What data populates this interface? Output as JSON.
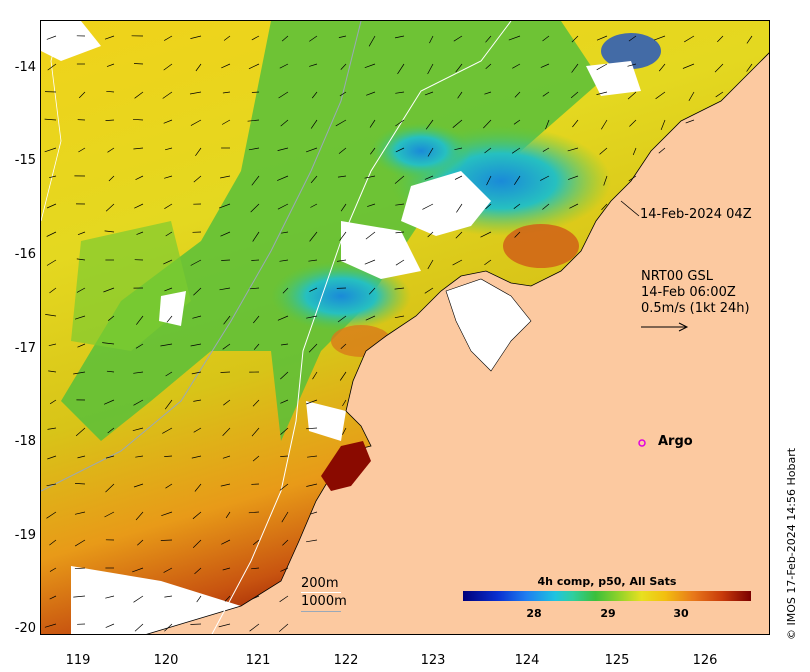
{
  "map": {
    "y_axis_labels": [
      "-14",
      "-15",
      "-16",
      "-17",
      "-18",
      "-19",
      "-20"
    ],
    "x_axis_labels": [
      "119",
      "120",
      "121",
      "122",
      "123",
      "124",
      "125",
      "126"
    ],
    "lat_range": [
      -20.05,
      -13.5
    ],
    "lon_range": [
      118.6,
      126.55
    ],
    "land_color": "#fcc9a0",
    "cloud_color": "#ffffff"
  },
  "annotations": {
    "sst_timestamp": "14-Feb-2024 04Z",
    "current_source": "NRT00 GSL",
    "current_time": "14-Feb 06:00Z",
    "current_scale": "0.5m/s (1kt 24h)",
    "argo_label": "Argo",
    "contour_200": "200m",
    "contour_1000": "1000m"
  },
  "colorbar": {
    "title": "4h comp, p50, All Sats",
    "ticks": [
      "28",
      "29",
      "30"
    ],
    "range": [
      26.9,
      30.8
    ]
  },
  "credit": "© IMOS 17-Feb-2024 14:56 Hobart",
  "colors": {
    "argo_marker": "#e000e0",
    "contour_200": "#ffffff",
    "contour_1000": "#9aa8b8"
  }
}
